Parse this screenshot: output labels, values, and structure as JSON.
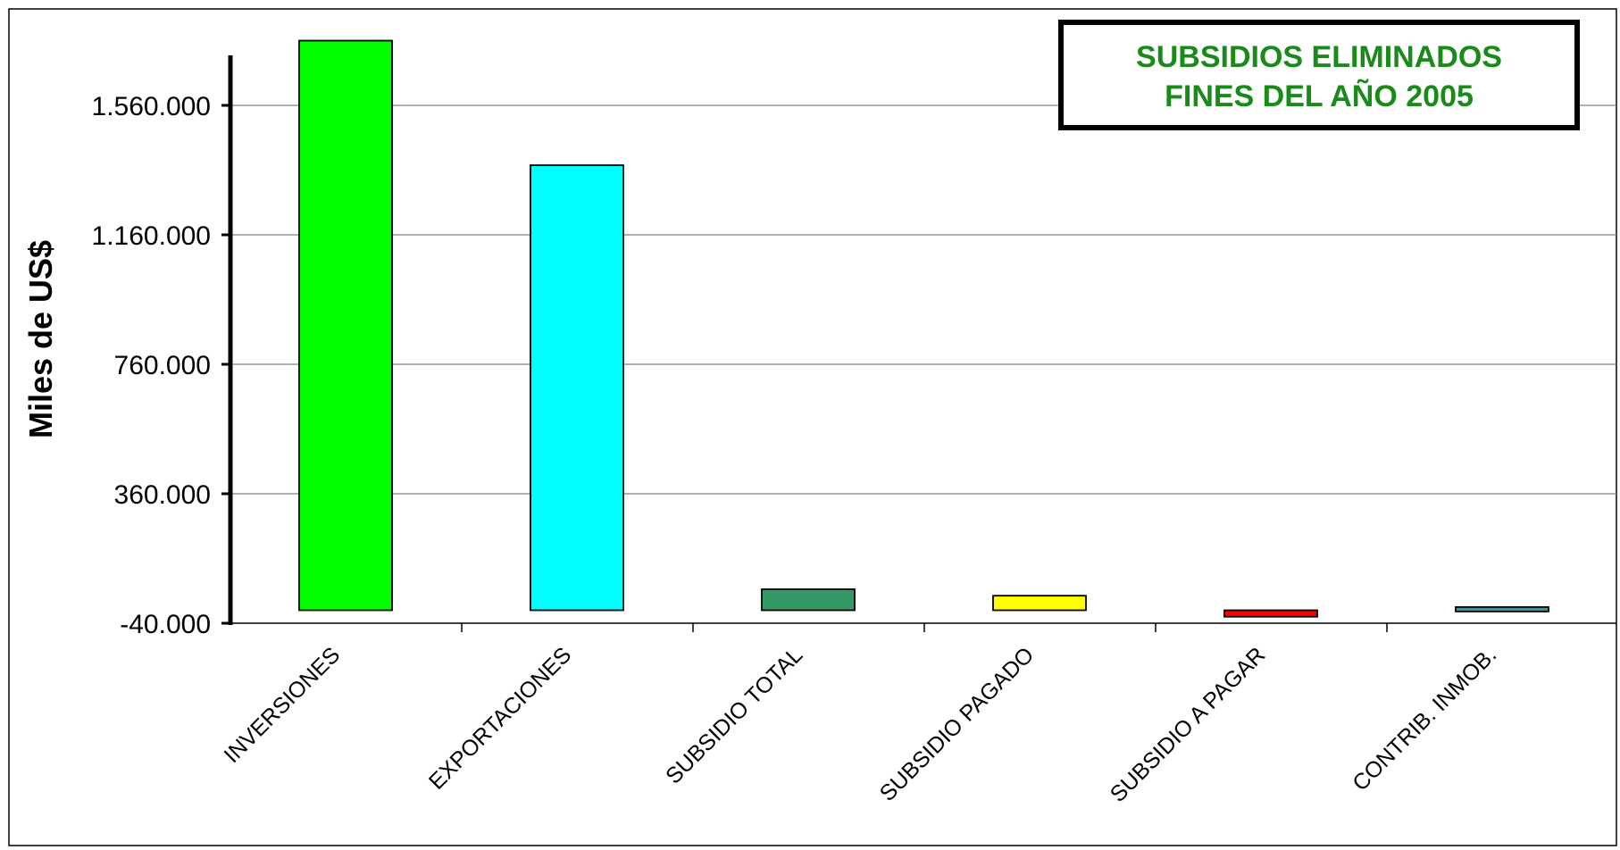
{
  "chart_data": {
    "type": "bar",
    "title": "SUBSIDIOS ELIMINADOS FINES DEL AÑO 2005",
    "title_lines": [
      "SUBSIDIOS ELIMINADOS",
      "FINES DEL AÑO 2005"
    ],
    "title_color": "#1a8a1a",
    "ylabel": "Miles de US$",
    "xlabel": "",
    "ylim": [
      -40000,
      1720000
    ],
    "yticks": [
      -40000,
      360000,
      760000,
      1160000,
      1560000
    ],
    "ytick_labels": [
      "-40.000",
      "360.000",
      "760.000",
      "1.160.000",
      "1.560.000"
    ],
    "grid": true,
    "legend": "none",
    "categories": [
      "INVERSIONES",
      "EXPORTACIONES",
      "SUBSIDIO TOTAL",
      "SUBSIDIO PAGADO",
      "SUBSIDIO A PAGAR",
      "CONTRIB. INMOB."
    ],
    "values": [
      1760000,
      1375000,
      65000,
      45000,
      -20000,
      10000
    ],
    "colors": [
      "#00ff00",
      "#00ffff",
      "#339966",
      "#ffff00",
      "#ff0000",
      "#339999"
    ]
  }
}
